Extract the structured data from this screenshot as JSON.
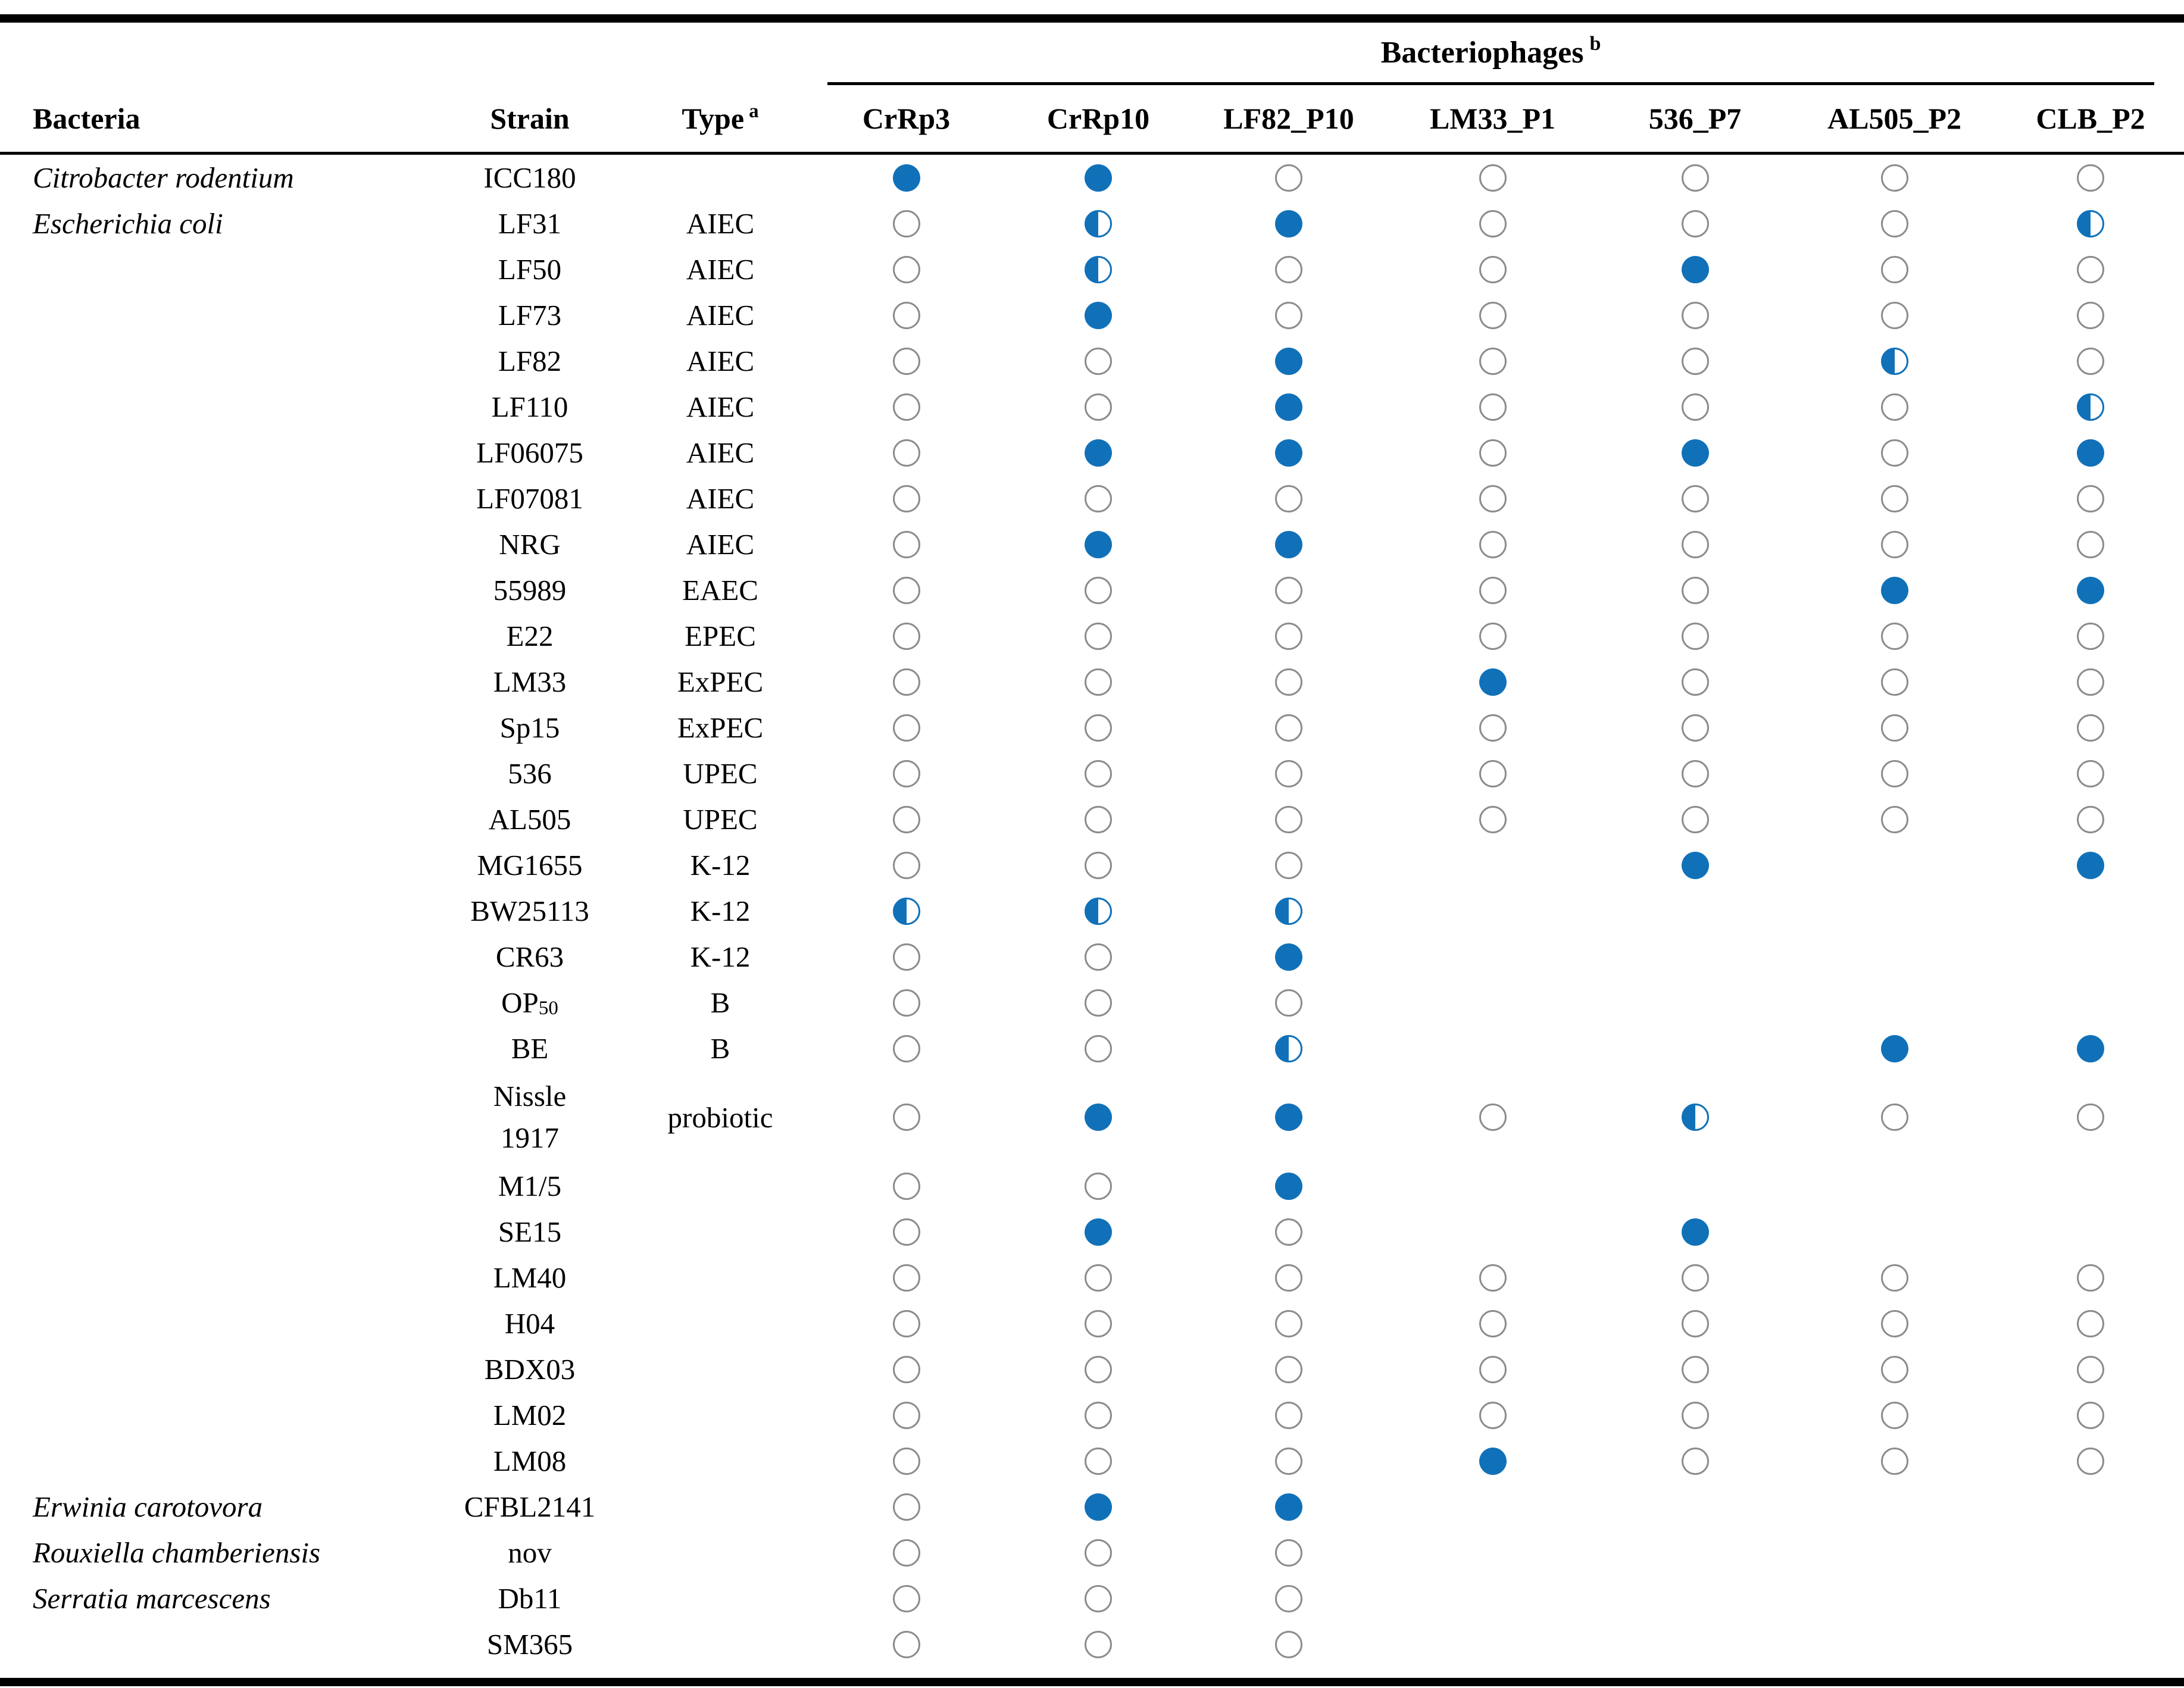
{
  "table": {
    "group_header": {
      "label": "Bacteriophages",
      "sup": "b"
    },
    "columns": {
      "bacteria": "Bacteria",
      "strain": "Strain",
      "type": "Type",
      "type_sup": "a",
      "phages": [
        "CrRp3",
        "CrRp10",
        "LF82_P10",
        "LM33_P1",
        "536_P7",
        "AL505_P2",
        "CLB_P2"
      ]
    },
    "colors": {
      "filled_blue": "#1071B9",
      "empty_circle_gray": "#8C8C8C"
    },
    "circle_states_legend": [
      "filled",
      "half",
      "empty",
      "none"
    ],
    "rows": [
      {
        "bacteria": "Citrobacter rodentium",
        "strain": "ICC180",
        "type": "",
        "phages": [
          "filled",
          "filled",
          "empty",
          "empty",
          "empty",
          "empty",
          "empty"
        ]
      },
      {
        "bacteria": "Escherichia coli",
        "strain": "LF31",
        "type": "AIEC",
        "phages": [
          "empty",
          "half",
          "filled",
          "empty",
          "empty",
          "empty",
          "half"
        ]
      },
      {
        "bacteria": "",
        "strain": "LF50",
        "type": "AIEC",
        "phages": [
          "empty",
          "half",
          "empty",
          "empty",
          "filled",
          "empty",
          "empty"
        ]
      },
      {
        "bacteria": "",
        "strain": "LF73",
        "type": "AIEC",
        "phages": [
          "empty",
          "filled",
          "empty",
          "empty",
          "empty",
          "empty",
          "empty"
        ]
      },
      {
        "bacteria": "",
        "strain": "LF82",
        "type": "AIEC",
        "phages": [
          "empty",
          "empty",
          "filled",
          "empty",
          "empty",
          "half",
          "empty"
        ]
      },
      {
        "bacteria": "",
        "strain": "LF110",
        "type": "AIEC",
        "phages": [
          "empty",
          "empty",
          "filled",
          "empty",
          "empty",
          "empty",
          "half"
        ]
      },
      {
        "bacteria": "",
        "strain": "LF06075",
        "type": "AIEC",
        "phages": [
          "empty",
          "filled",
          "filled",
          "empty",
          "filled",
          "empty",
          "filled"
        ]
      },
      {
        "bacteria": "",
        "strain": "LF07081",
        "type": "AIEC",
        "phages": [
          "empty",
          "empty",
          "empty",
          "empty",
          "empty",
          "empty",
          "empty"
        ]
      },
      {
        "bacteria": "",
        "strain": "NRG",
        "type": "AIEC",
        "phages": [
          "empty",
          "filled",
          "filled",
          "empty",
          "empty",
          "empty",
          "empty"
        ]
      },
      {
        "bacteria": "",
        "strain": "55989",
        "type": "EAEC",
        "phages": [
          "empty",
          "empty",
          "empty",
          "empty",
          "empty",
          "filled",
          "filled"
        ]
      },
      {
        "bacteria": "",
        "strain": "E22",
        "type": "EPEC",
        "phages": [
          "empty",
          "empty",
          "empty",
          "empty",
          "empty",
          "empty",
          "empty"
        ]
      },
      {
        "bacteria": "",
        "strain": "LM33",
        "type": "ExPEC",
        "phages": [
          "empty",
          "empty",
          "empty",
          "filled",
          "empty",
          "empty",
          "empty"
        ]
      },
      {
        "bacteria": "",
        "strain": "Sp15",
        "type": "ExPEC",
        "phages": [
          "empty",
          "empty",
          "empty",
          "empty",
          "empty",
          "empty",
          "empty"
        ]
      },
      {
        "bacteria": "",
        "strain": "536",
        "type": "UPEC",
        "phages": [
          "empty",
          "empty",
          "empty",
          "empty",
          "empty",
          "empty",
          "empty"
        ]
      },
      {
        "bacteria": "",
        "strain": "AL505",
        "type": "UPEC",
        "phages": [
          "empty",
          "empty",
          "empty",
          "empty",
          "empty",
          "empty",
          "empty"
        ]
      },
      {
        "bacteria": "",
        "strain": "MG1655",
        "type": "K-12",
        "phages": [
          "empty",
          "empty",
          "empty",
          "none",
          "filled",
          "none",
          "filled"
        ]
      },
      {
        "bacteria": "",
        "strain": "BW25113",
        "type": "K-12",
        "phages": [
          "half",
          "half",
          "half",
          "none",
          "none",
          "none",
          "none"
        ]
      },
      {
        "bacteria": "",
        "strain": "CR63",
        "type": "K-12",
        "phages": [
          "empty",
          "empty",
          "filled",
          "none",
          "none",
          "none",
          "none"
        ]
      },
      {
        "bacteria": "",
        "strain": "OP",
        "strain_sub": "50",
        "type": "B",
        "phages": [
          "empty",
          "empty",
          "empty",
          "none",
          "none",
          "none",
          "none"
        ]
      },
      {
        "bacteria": "",
        "strain": "BE",
        "type": "B",
        "phages": [
          "empty",
          "empty",
          "half",
          "none",
          "none",
          "filled",
          "filled"
        ]
      },
      {
        "bacteria": "",
        "strain_lines": [
          "Nissle",
          "1917"
        ],
        "tall": true,
        "type": "probiotic",
        "phages": [
          "empty",
          "filled",
          "filled",
          "empty",
          "half",
          "empty",
          "empty"
        ]
      },
      {
        "bacteria": "",
        "strain": "M1/5",
        "type": "",
        "phages": [
          "empty",
          "empty",
          "filled",
          "none",
          "none",
          "none",
          "none"
        ]
      },
      {
        "bacteria": "",
        "strain": "SE15",
        "type": "",
        "phages": [
          "empty",
          "filled",
          "empty",
          "none",
          "filled",
          "none",
          "none"
        ]
      },
      {
        "bacteria": "",
        "strain": "LM40",
        "type": "",
        "phages": [
          "empty",
          "empty",
          "empty",
          "empty",
          "empty",
          "empty",
          "empty"
        ]
      },
      {
        "bacteria": "",
        "strain": "H04",
        "type": "",
        "phages": [
          "empty",
          "empty",
          "empty",
          "empty",
          "empty",
          "empty",
          "empty"
        ]
      },
      {
        "bacteria": "",
        "strain": "BDX03",
        "type": "",
        "phages": [
          "empty",
          "empty",
          "empty",
          "empty",
          "empty",
          "empty",
          "empty"
        ]
      },
      {
        "bacteria": "",
        "strain": "LM02",
        "type": "",
        "phages": [
          "empty",
          "empty",
          "empty",
          "empty",
          "empty",
          "empty",
          "empty"
        ]
      },
      {
        "bacteria": "",
        "strain": "LM08",
        "type": "",
        "phages": [
          "empty",
          "empty",
          "empty",
          "filled",
          "empty",
          "empty",
          "empty"
        ]
      },
      {
        "bacteria": "Erwinia carotovora",
        "strain": "CFBL2141",
        "type": "",
        "phages": [
          "empty",
          "filled",
          "filled",
          "none",
          "none",
          "none",
          "none"
        ]
      },
      {
        "bacteria": "Rouxiella chamberiensis",
        "strain": "nov",
        "type": "",
        "phages": [
          "empty",
          "empty",
          "empty",
          "none",
          "none",
          "none",
          "none"
        ]
      },
      {
        "bacteria": "Serratia marcescens",
        "strain": "Db11",
        "type": "",
        "phages": [
          "empty",
          "empty",
          "empty",
          "none",
          "none",
          "none",
          "none"
        ]
      },
      {
        "bacteria": "",
        "strain": "SM365",
        "type": "",
        "phages": [
          "empty",
          "empty",
          "empty",
          "none",
          "none",
          "none",
          "none"
        ]
      }
    ]
  }
}
